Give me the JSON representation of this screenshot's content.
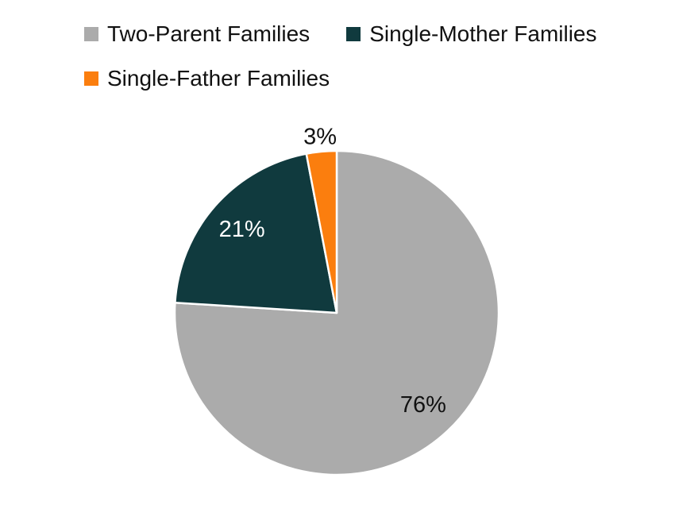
{
  "chart_data": {
    "type": "pie",
    "title": "",
    "unit": "%",
    "direction": "clockwise",
    "start_angle_deg": 0,
    "legend_position": "top-left",
    "categories": [
      "Two-Parent Families",
      "Single-Mother Families",
      "Single-Father Families"
    ],
    "values": [
      76,
      21,
      3
    ],
    "slices": [
      {
        "category": "Two-Parent Families",
        "value": 76,
        "label": "76%",
        "color": "#ABABAB",
        "label_color": "#111111",
        "label_position": "inside"
      },
      {
        "category": "Single-Mother Families",
        "value": 21,
        "label": "21%",
        "color": "#103A3E",
        "label_color": "#FFFFFF",
        "label_position": "inside"
      },
      {
        "category": "Single-Father Families",
        "value": 3,
        "label": "3%",
        "color": "#FB7E0E",
        "label_color": "#111111",
        "label_position": "outside"
      }
    ],
    "slice_border_color": "#FFFFFF"
  }
}
